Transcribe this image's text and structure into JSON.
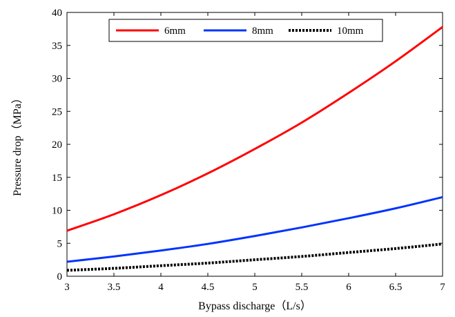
{
  "chart_data": {
    "type": "line",
    "title": "",
    "xlabel": "Bypass discharge（L/s）",
    "ylabel": "Pressure drop（MPa）",
    "xlim": [
      3,
      7
    ],
    "ylim": [
      0,
      40
    ],
    "x_ticks": [
      3,
      3.5,
      4,
      4.5,
      5,
      5.5,
      6,
      6.5,
      7
    ],
    "x_tick_labels": [
      "3",
      "3.5",
      "4",
      "4.5",
      "5",
      "5.5",
      "6",
      "6.5",
      "7"
    ],
    "y_ticks": [
      0,
      5,
      10,
      15,
      20,
      25,
      30,
      35,
      40
    ],
    "y_tick_labels": [
      "0",
      "5",
      "10",
      "15",
      "20",
      "25",
      "30",
      "35",
      "40"
    ],
    "grid": false,
    "legend_position": "top",
    "x": [
      3,
      3.5,
      4,
      4.5,
      5,
      5.5,
      6,
      6.5,
      7
    ],
    "series": [
      {
        "name": "6mm",
        "color": "#ff0000",
        "style": "solid",
        "values": [
          6.9,
          9.4,
          12.3,
          15.6,
          19.3,
          23.3,
          27.8,
          32.6,
          37.8
        ]
      },
      {
        "name": "8mm",
        "color": "#0033ff",
        "style": "solid",
        "values": [
          2.2,
          3.0,
          3.9,
          4.9,
          6.1,
          7.4,
          8.8,
          10.3,
          12.0
        ]
      },
      {
        "name": "10mm",
        "color": "#000000",
        "style": "dotted",
        "values": [
          0.9,
          1.2,
          1.6,
          2.0,
          2.5,
          3.0,
          3.6,
          4.2,
          4.9
        ]
      }
    ]
  }
}
